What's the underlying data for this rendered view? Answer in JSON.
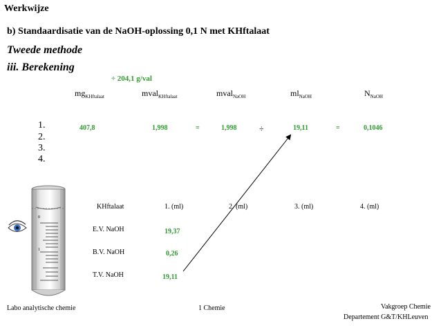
{
  "heading": "Werkwijze",
  "subtitle": "b) Standaardisatie van de NaOH-oplossing 0,1 N met KHftalaat",
  "method": "Tweede methode",
  "section": "iii. Berekening",
  "divisor": "÷ 204,1 g/val",
  "columns": [
    {
      "main": "mg",
      "sub": "KHftalaat"
    },
    {
      "main": "mval",
      "sub": "KHftalaat"
    },
    {
      "main": "mval",
      "sub": "NaOH"
    },
    {
      "main": "ml",
      "sub": "NaOH"
    },
    {
      "main": "N",
      "sub": "NaOH"
    }
  ],
  "row_numbers": [
    "1.",
    "2.",
    "3.",
    "4."
  ],
  "calc_row": {
    "mg": "407,8",
    "mval_khf": "1,998",
    "eq1": "=",
    "mval_naoh": "1,998",
    "div": "÷",
    "ml": "19,11",
    "eq2": "=",
    "normality": "0,1046"
  },
  "burette_table": {
    "headers": [
      "KHftalaat",
      "1. (ml)",
      "2. (ml)",
      "3. (ml)",
      "4. (ml)"
    ],
    "rows": [
      {
        "label": "E.V. NaOH",
        "value": "19,37"
      },
      {
        "label": "B.V. NaOH",
        "value": "0,26"
      },
      {
        "label": "T.V. NaOH",
        "value": "19,11"
      }
    ]
  },
  "burette_marks": [
    "0",
    "1"
  ],
  "footer": {
    "left": "Labo analytische chemie",
    "center": "1 Chemie",
    "right_line1": "Vakgroep Chemie",
    "right_line2": "Departement G&T/KHLeuven"
  },
  "colors": {
    "value_green": "#2e9b2e"
  },
  "icons": [
    "eye-icon",
    "burette-illustration",
    "arrow-line"
  ]
}
